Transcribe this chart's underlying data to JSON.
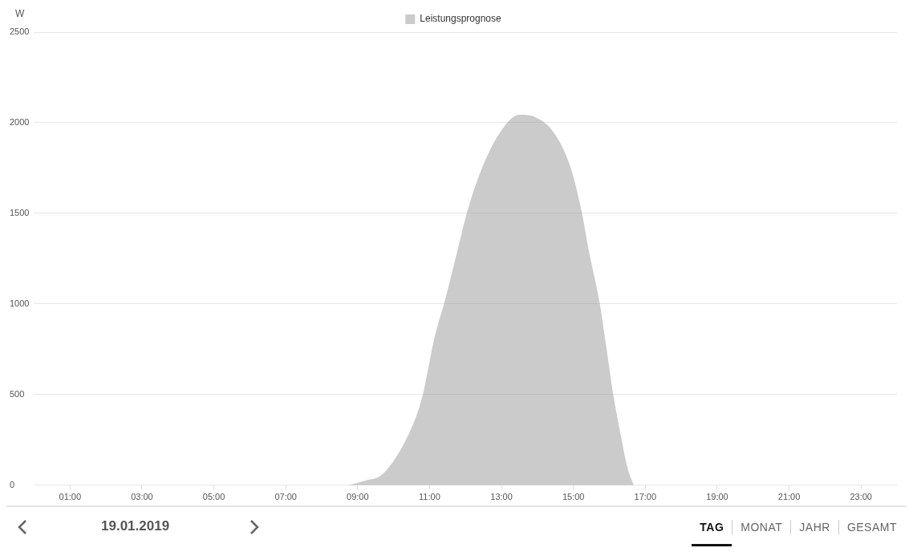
{
  "chart_data": {
    "type": "area",
    "ylabel": "W",
    "legend": "top",
    "x": [
      8.73,
      9.2,
      9.7,
      10.45,
      10.8,
      11.14,
      11.41,
      11.75,
      12.05,
      12.43,
      12.89,
      13.5,
      13.95,
      14.48,
      14.93,
      15.23,
      15.45,
      15.73,
      15.91,
      16.11,
      16.3,
      16.52,
      16.68
    ],
    "series": [
      {
        "name": "Leistungsprognose",
        "color": "#9e9e9e",
        "values": [
          0,
          25,
          62,
          295,
          490,
          817,
          1007,
          1274,
          1511,
          1735,
          1925,
          2044,
          2030,
          1939,
          1749,
          1511,
          1274,
          1007,
          770,
          499,
          295,
          86,
          0
        ]
      }
    ],
    "xlim": [
      0,
      24
    ],
    "xticks": [
      {
        "value": 1,
        "label": "01:00"
      },
      {
        "value": 3,
        "label": "03:00"
      },
      {
        "value": 5,
        "label": "05:00"
      },
      {
        "value": 7,
        "label": "07:00"
      },
      {
        "value": 9,
        "label": "09:00"
      },
      {
        "value": 11,
        "label": "11:00"
      },
      {
        "value": 13,
        "label": "13:00"
      },
      {
        "value": 15,
        "label": "15:00"
      },
      {
        "value": 17,
        "label": "17:00"
      },
      {
        "value": 19,
        "label": "19:00"
      },
      {
        "value": 21,
        "label": "21:00"
      },
      {
        "value": 23,
        "label": "23:00"
      }
    ],
    "ylim": [
      0,
      2500
    ],
    "yticks": [
      0,
      500,
      1000,
      1500,
      2000,
      2500
    ],
    "grid": "y",
    "annotations": [
      "19.01.2019",
      "TAG",
      "MONAT",
      "JAHR",
      "GESAMT"
    ]
  }
}
